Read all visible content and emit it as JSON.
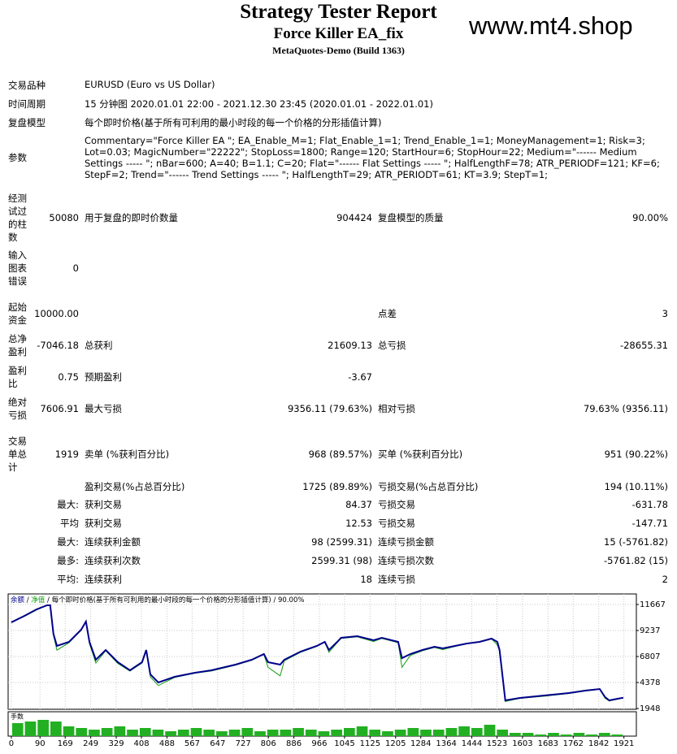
{
  "header": {
    "title": "Strategy Tester Report",
    "subtitle": "Force Killer EA_fix",
    "server": "MetaQuotes-Demo (Build 1363)",
    "watermark": "www.mt4.shop"
  },
  "info": [
    {
      "label": "交易品种",
      "value": "EURUSD (Euro vs US Dollar)"
    },
    {
      "label": "时间周期",
      "value": "15 分钟图 2020.01.01 22:00 - 2021.12.30 23:45 (2020.01.01 - 2022.01.01)"
    },
    {
      "label": "复盘模型",
      "value": "每个即时价格(基于所有可利用的最小时段的每一个价格的分形插值计算)"
    },
    {
      "label": "参数",
      "value": "Commentary=\"Force Killer EA \"; EA_Enable_M=1; Flat_Enable_1=1; Trend_Enable_1=1; MoneyManagement=1; Risk=3; Lot=0.03; MagicNumber=\"22222\"; StopLoss=1800; Range=120; StartHour=6; StopHour=22; Medium=\"------ Medium Settings ----- \"; nBar=600; A=40; B=1.1; C=20; Flat=\"------ Flat Settings ----- \"; HalfLengthF=78; ATR_PERIODF=121; KF=6; StepF=2; Trend=\"------ Trend Settings ----- \"; HalfLengthT=29; ATR_PERIODT=61; KT=3.9; StepT=1;"
    }
  ],
  "stats": {
    "rows": [
      [
        "经测试过的柱数",
        "50080",
        "用于复盘的即时价数量",
        "904424",
        "复盘模型的质量",
        "90.00%"
      ],
      [
        "输入图表错误",
        "0",
        null,
        null,
        null,
        null
      ],
      [
        "起始资金",
        "10000.00",
        null,
        null,
        "点差",
        "3"
      ],
      [
        "总净盈利",
        "-7046.18",
        "总获利",
        "21609.13",
        "总亏损",
        "-28655.31"
      ],
      [
        "盈利比",
        "0.75",
        "预期盈利",
        "-3.67",
        null,
        null
      ],
      [
        "绝对亏损",
        "7606.91",
        "最大亏损",
        "9356.11 (79.63%)",
        "相对亏损",
        "79.63% (9356.11)"
      ],
      [
        "交易单总计",
        "1919",
        "卖单 (%获利百分比)",
        "968 (89.57%)",
        "买单 (%获利百分比)",
        "951 (90.22%)"
      ],
      [
        null,
        null,
        "盈利交易(%占总百分比)",
        "1725 (89.89%)",
        "亏损交易(%占总百分比)",
        "194 (10.11%)"
      ],
      [
        null,
        "最大:",
        "获利交易",
        "84.37",
        "亏损交易",
        "-631.78"
      ],
      [
        null,
        "平均",
        "获利交易",
        "12.53",
        "亏损交易",
        "-147.71"
      ],
      [
        null,
        "最大:",
        "连续获利金额",
        "98 (2599.31)",
        "连续亏损金额",
        "15 (-5761.82)"
      ],
      [
        null,
        "最多:",
        "连续获利次数",
        "2599.31 (98)",
        "连续亏损次数",
        "-5761.82 (15)"
      ],
      [
        null,
        "平均:",
        "连续获利",
        "18",
        "连续亏损",
        "2"
      ]
    ]
  },
  "chart_data": {
    "type": "line",
    "legend_separator": "/",
    "model": "每个即时价格(基于所有可利用的最小时段的每一个价格的分形插值计算)",
    "quality": "90.00%",
    "x": [
      0,
      41,
      79,
      112,
      122,
      132,
      143,
      181,
      219,
      234,
      245,
      265,
      296,
      334,
      372,
      410,
      423,
      436,
      461,
      512,
      576,
      627,
      703,
      754,
      792,
      805,
      843,
      856,
      907,
      958,
      983,
      996,
      1022,
      1034,
      1085,
      1136,
      1162,
      1213,
      1225,
      1251,
      1289,
      1327,
      1353,
      1391,
      1429,
      1468,
      1506,
      1524,
      1531,
      1549,
      1595,
      1671,
      1748,
      1799,
      1845,
      1862,
      1875,
      1901,
      1919
    ],
    "series": [
      {
        "name": "余额",
        "color": "#00008b",
        "values": [
          10000,
          10604,
          11211,
          11591,
          11591,
          8934,
          7795,
          8174,
          9313,
          10072,
          8174,
          6504,
          7415,
          6276,
          5517,
          6276,
          7415,
          5137,
          4378,
          4909,
          5289,
          5517,
          6048,
          6504,
          7035,
          6276,
          6048,
          6504,
          7263,
          7795,
          8174,
          7415,
          8174,
          8554,
          8706,
          8326,
          8554,
          8174,
          6656,
          7035,
          7415,
          7719,
          7567,
          7795,
          8022,
          8174,
          8478,
          8174,
          7415,
          2707,
          2935,
          3163,
          3391,
          3618,
          3770,
          3011,
          2707,
          2859,
          2954
        ]
      },
      {
        "name": "净值",
        "color": "#12a012",
        "values": [
          10000,
          10550,
          11150,
          11591,
          11591,
          8800,
          7400,
          8100,
          9250,
          10072,
          8000,
          6200,
          7350,
          6150,
          5450,
          6200,
          7350,
          4900,
          4100,
          4850,
          5250,
          5450,
          6000,
          6450,
          7000,
          5800,
          5000,
          6400,
          7200,
          7750,
          8150,
          7200,
          8100,
          8500,
          8650,
          8200,
          8500,
          8100,
          5800,
          6900,
          7350,
          7650,
          7450,
          7750,
          8000,
          8150,
          8450,
          7900,
          7300,
          2600,
          2900,
          3100,
          3350,
          3580,
          3740,
          2900,
          2650,
          2820,
          2954
        ]
      }
    ],
    "xlim": [
      -10,
      1960
    ],
    "ylim": [
      1872,
      12654
    ],
    "xticks": [
      0,
      90,
      169,
      249,
      329,
      408,
      488,
      567,
      647,
      727,
      806,
      886,
      966,
      1045,
      1125,
      1205,
      1284,
      1364,
      1444,
      1523,
      1603,
      1683,
      1762,
      1842,
      1921
    ],
    "yticks": [
      11667,
      9237,
      6807,
      4378,
      1948
    ],
    "grid": true,
    "lots": {
      "label": "手数",
      "color": "#22b022",
      "ylim": [
        0,
        10
      ],
      "bins": [
        0,
        40,
        80,
        120,
        160,
        200,
        240,
        280,
        320,
        360,
        400,
        440,
        480,
        520,
        560,
        600,
        640,
        680,
        720,
        760,
        800,
        840,
        880,
        920,
        960,
        1000,
        1040,
        1080,
        1120,
        1160,
        1200,
        1240,
        1280,
        1320,
        1360,
        1400,
        1440,
        1480,
        1520,
        1560,
        1600,
        1640,
        1680,
        1720,
        1760,
        1800,
        1840,
        1880,
        1920
      ],
      "values": [
        8,
        9,
        10,
        9,
        6,
        5,
        4,
        5,
        6,
        4,
        5,
        4,
        3,
        4,
        5,
        4,
        3,
        4,
        5,
        3,
        4,
        4,
        5,
        4,
        3,
        4,
        5,
        6,
        4,
        3,
        4,
        5,
        4,
        4,
        5,
        6,
        5,
        7,
        4,
        2,
        2,
        1,
        2,
        1,
        2,
        1,
        2,
        1
      ]
    }
  }
}
